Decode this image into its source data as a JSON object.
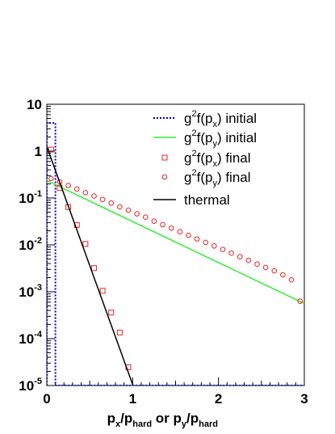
{
  "chart_data": {
    "type": "scatter",
    "xlabel": "p_x/p_hard or p_y/p_hard",
    "xlabel_parts": {
      "p1": "p",
      "s1": "x",
      "m1": "/p",
      "s2": "hard",
      "m2": " or p",
      "s3": "y",
      "m3": "/p",
      "s4": "hard"
    },
    "xlim": [
      0,
      3
    ],
    "ylim": [
      1e-05,
      10
    ],
    "yscale": "log",
    "x_ticks": [
      0,
      1,
      2,
      3
    ],
    "x_tick_labels": [
      "0",
      "1",
      "2",
      "3"
    ],
    "y_ticks": [
      1e-05,
      0.0001,
      0.001,
      0.01,
      0.1,
      1,
      10
    ],
    "y_tick_labels": [
      {
        "base": "10",
        "exp": "-5"
      },
      {
        "base": "10",
        "exp": "-4"
      },
      {
        "base": "10",
        "exp": "-3"
      },
      {
        "base": "10",
        "exp": "-2"
      },
      {
        "base": "10",
        "exp": "-1"
      },
      {
        "base": "1",
        "exp": ""
      },
      {
        "base": "10",
        "exp": ""
      }
    ],
    "legend_position": "top-right",
    "series": [
      {
        "name": "g2f(px) initial",
        "label_parts": {
          "a": "g",
          "b": "2",
          "c": "f(p",
          "d": "x",
          "e": ") initial"
        },
        "kind": "dashed-line",
        "color": "#0000cc",
        "x": [
          0,
          0,
          0.1,
          0.1,
          3
        ],
        "y": [
          1e-05,
          4.0,
          4.0,
          1e-05,
          1e-05
        ]
      },
      {
        "name": "g2f(py) initial",
        "label_parts": {
          "a": "g",
          "b": "2",
          "c": "f(p",
          "d": "y",
          "e": ") initial"
        },
        "kind": "line",
        "color": "#33ee33",
        "x": [
          0,
          3
        ],
        "y": [
          0.235,
          0.00056
        ]
      },
      {
        "name": "g2f(px) final",
        "label_parts": {
          "a": "g",
          "b": "2",
          "c": "f(p",
          "d": "x",
          "e": ") final"
        },
        "kind": "square-marker",
        "color": "#ee2222",
        "x": [
          0.05,
          0.15,
          0.25,
          0.35,
          0.45,
          0.55,
          0.65,
          0.75,
          0.85,
          0.95
        ],
        "y": [
          1.08,
          0.165,
          0.064,
          0.0265,
          0.0105,
          0.0032,
          0.00105,
          0.00036,
          0.000135,
          2.45e-05
        ]
      },
      {
        "name": "g2f(py) final",
        "label_parts": {
          "a": "g",
          "b": "2",
          "c": "f(p",
          "d": "y",
          "e": ") final"
        },
        "kind": "circle-marker",
        "color": "#ee2222",
        "x": [
          0.05,
          0.15,
          0.25,
          0.35,
          0.45,
          0.55,
          0.65,
          0.75,
          0.85,
          0.95,
          1.05,
          1.15,
          1.25,
          1.35,
          1.45,
          1.55,
          1.65,
          1.75,
          1.85,
          1.95,
          2.05,
          2.15,
          2.25,
          2.35,
          2.45,
          2.55,
          2.65,
          2.75,
          2.85,
          2.95
        ],
        "y": [
          0.26,
          0.22,
          0.185,
          0.155,
          0.13,
          0.11,
          0.093,
          0.078,
          0.065,
          0.055,
          0.046,
          0.039,
          0.032,
          0.027,
          0.0228,
          0.019,
          0.016,
          0.0134,
          0.0113,
          0.0095,
          0.008,
          0.0067,
          0.0056,
          0.0047,
          0.0039,
          0.0033,
          0.0028,
          0.0023,
          0.0018,
          0.00063
        ]
      },
      {
        "name": "thermal",
        "label_parts": {
          "a": "thermal",
          "b": "",
          "c": "",
          "d": "",
          "e": ""
        },
        "kind": "line",
        "color": "#000000",
        "x": [
          0,
          1
        ],
        "y": [
          1.25,
          1.05e-05
        ]
      }
    ]
  }
}
